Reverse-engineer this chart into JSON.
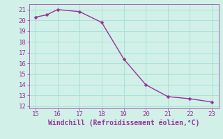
{
  "x": [
    15,
    15.5,
    16,
    17,
    18,
    19,
    20,
    21,
    22,
    23
  ],
  "y": [
    20.3,
    20.5,
    21.0,
    20.8,
    19.8,
    16.4,
    14.0,
    12.9,
    12.7,
    12.4
  ],
  "line_color": "#993399",
  "marker_color": "#993399",
  "bg_color": "#d0f0e8",
  "grid_color": "#a8ddd4",
  "tick_color": "#993399",
  "xlabel": "Windchill (Refroidissement éolien,°C)",
  "xlabel_color": "#993399",
  "xlim": [
    14.7,
    23.3
  ],
  "ylim": [
    11.8,
    21.5
  ],
  "xticks": [
    15,
    16,
    17,
    18,
    19,
    20,
    21,
    22,
    23
  ],
  "yticks": [
    12,
    13,
    14,
    15,
    16,
    17,
    18,
    19,
    20,
    21
  ],
  "font_size": 6.5,
  "xlabel_font_size": 7,
  "line_width": 1.0,
  "marker_size": 2.5
}
